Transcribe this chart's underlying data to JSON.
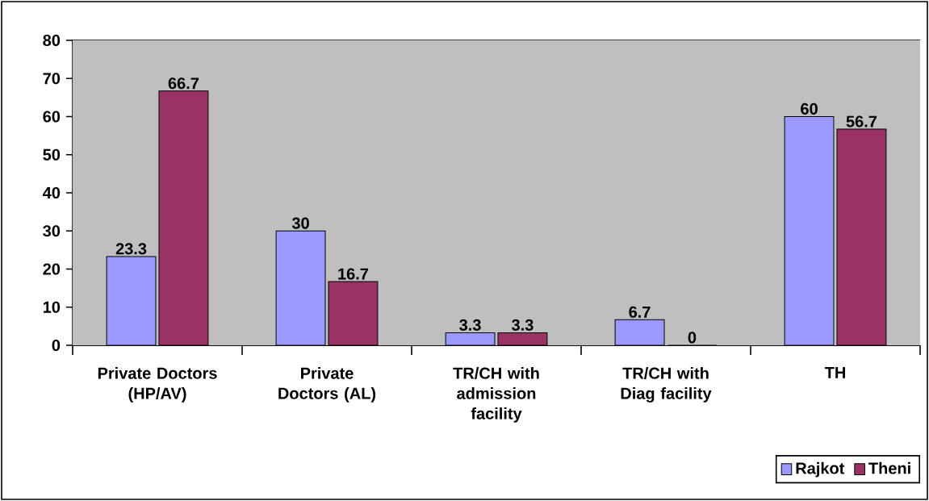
{
  "chart_data": {
    "type": "bar",
    "categories": [
      "Private Doctors (HP/AV)",
      "Private Doctors (AL)",
      "TR/CH with admission facility",
      "TR/CH with Diag facility",
      "TH"
    ],
    "series": [
      {
        "name": "Rajkot",
        "color": "#9999ff",
        "values": [
          23.3,
          30,
          3.3,
          6.7,
          60
        ]
      },
      {
        "name": "Theni",
        "color": "#993366",
        "values": [
          66.7,
          16.7,
          3.3,
          0,
          56.7
        ]
      }
    ],
    "ylim": [
      0,
      80
    ],
    "yticks": [
      0,
      10,
      20,
      30,
      40,
      50,
      60,
      70,
      80
    ],
    "grid": "y",
    "legend": "bottom right",
    "data_labels": true
  }
}
